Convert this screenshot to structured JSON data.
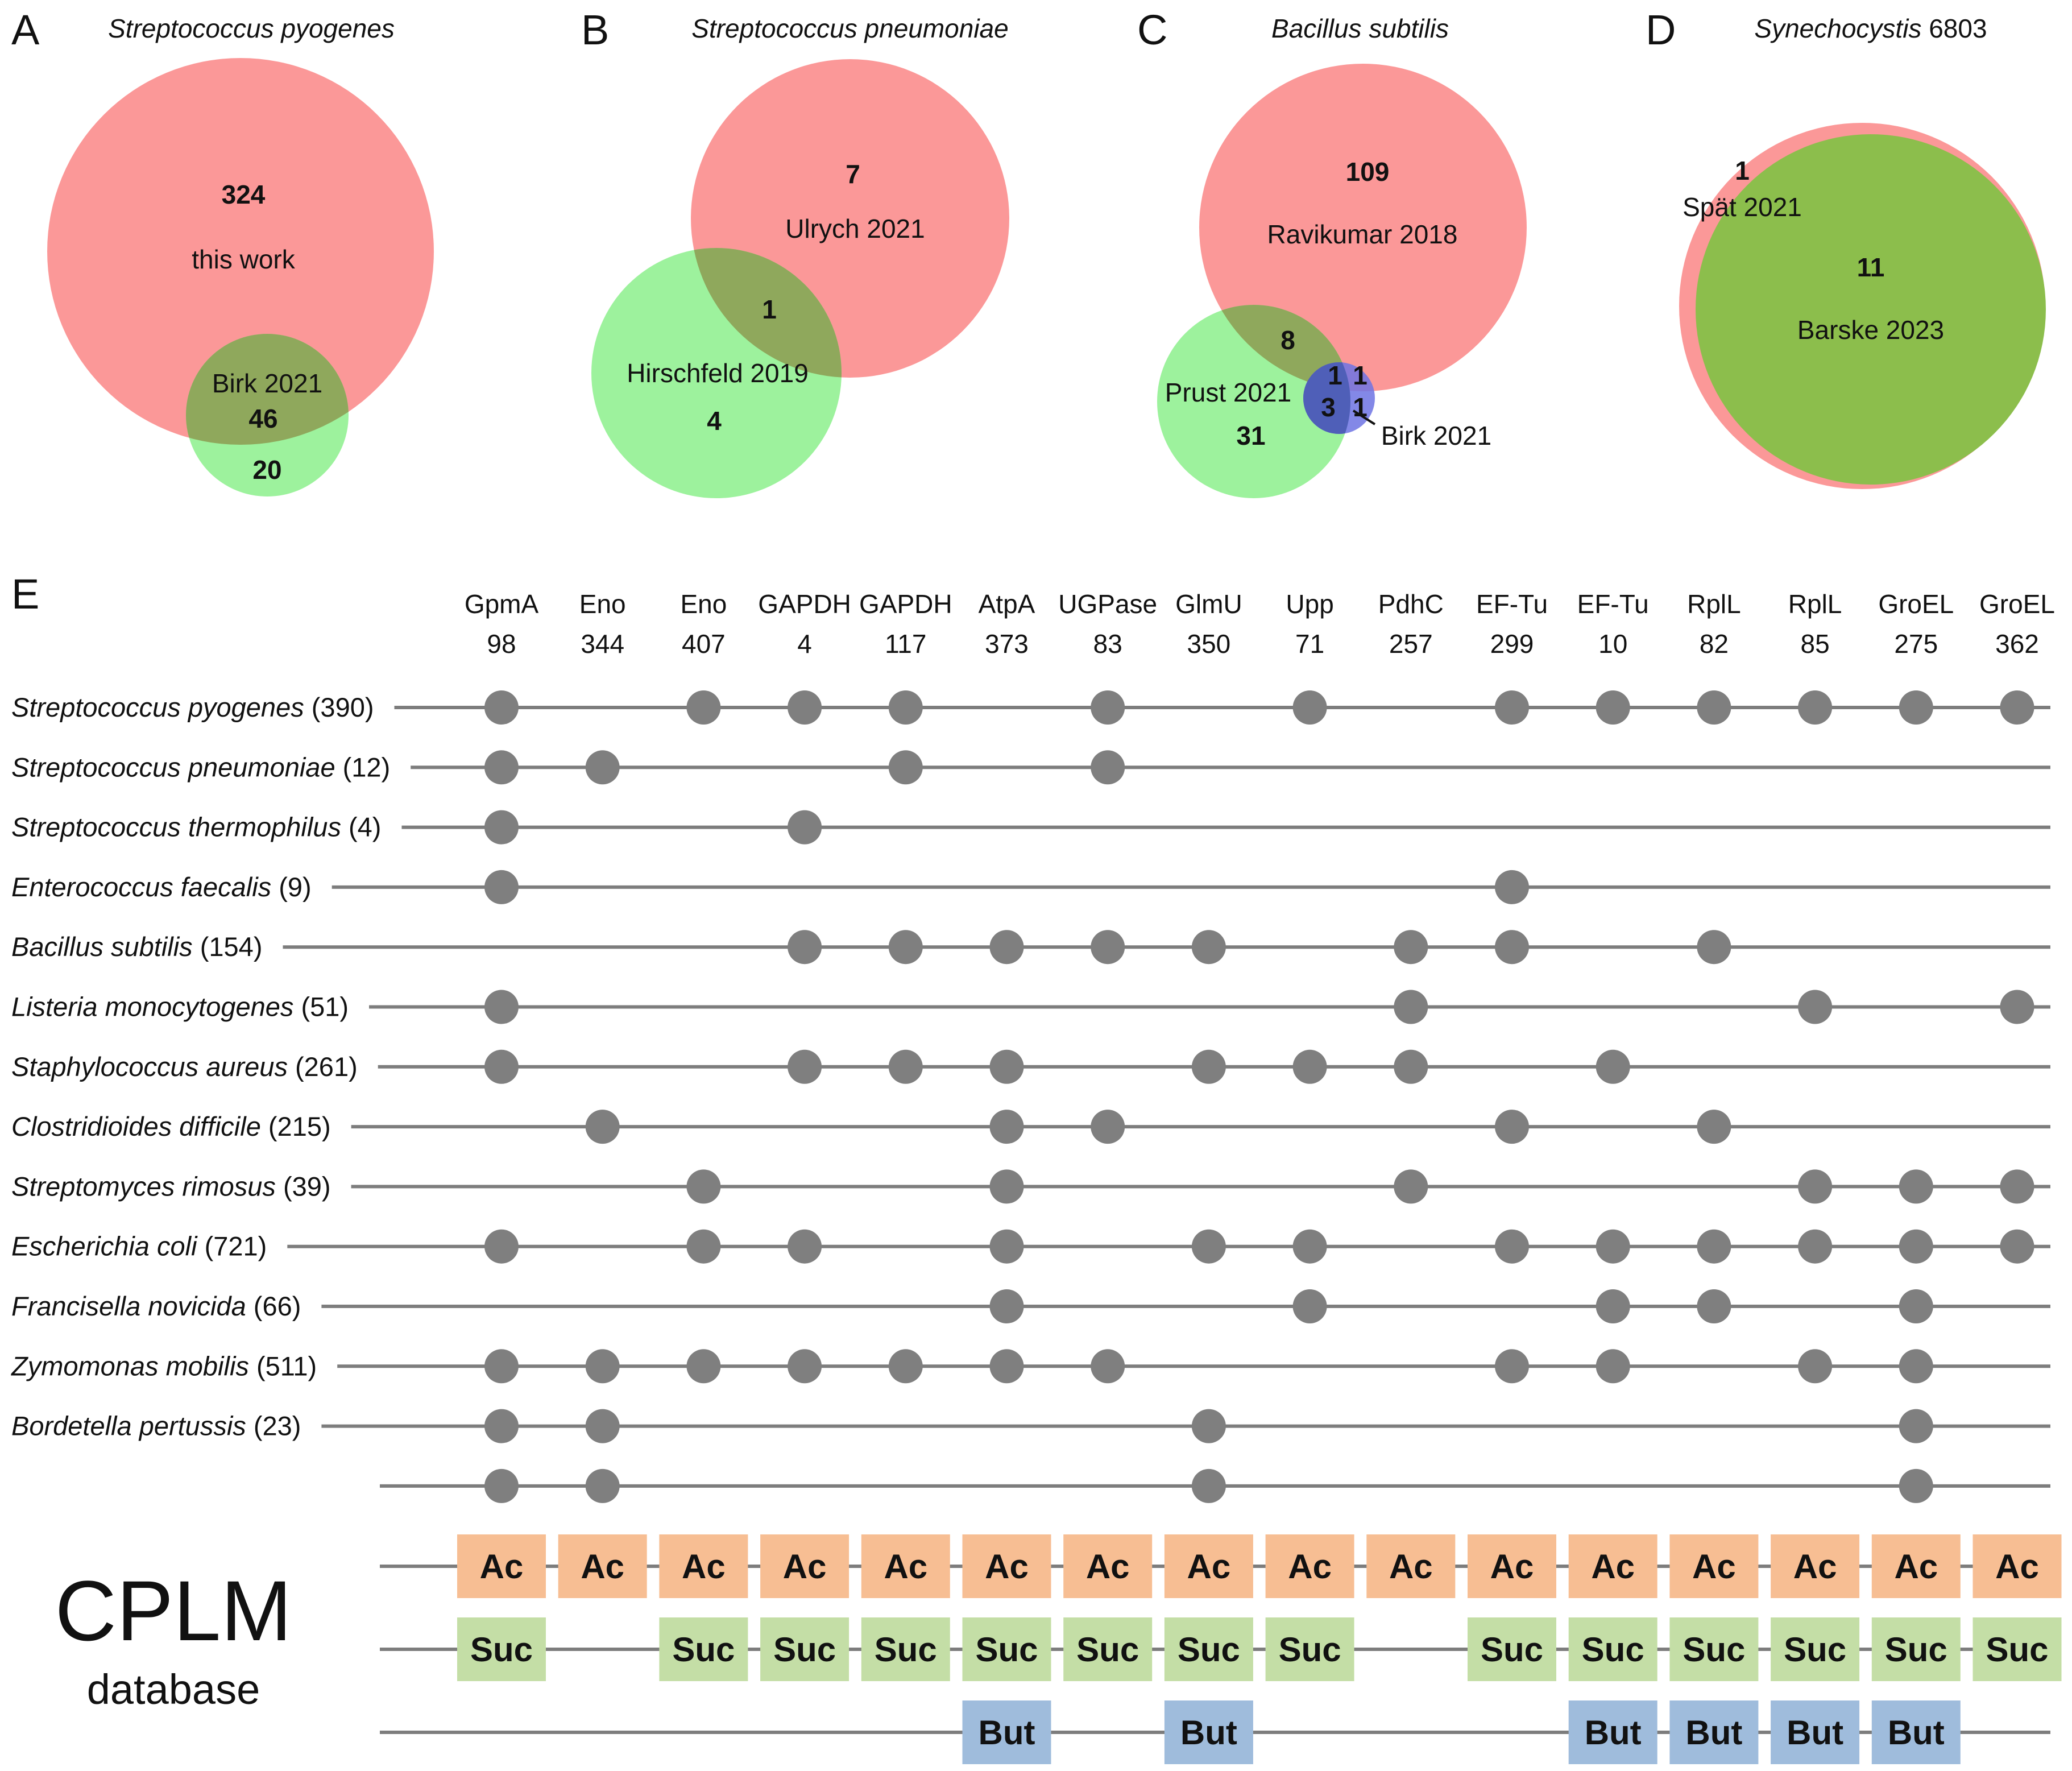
{
  "panels": {
    "A": {
      "label": "A",
      "title": "Streptococcus pyogenes",
      "big": {
        "label": "this work",
        "count": "324"
      },
      "small": {
        "label": "Birk 2021",
        "count": "20"
      },
      "overlap": "46"
    },
    "B": {
      "label": "B",
      "title": "Streptococcus pneumoniae",
      "big": {
        "label": "Ulrych 2021",
        "count": "7"
      },
      "small": {
        "label": "Hirschfeld 2019",
        "count": "4"
      },
      "overlap": "1"
    },
    "C": {
      "label": "C",
      "title": "Bacillus subtilis",
      "big": {
        "label": "Ravikumar 2018",
        "count": "109"
      },
      "green": {
        "label": "Prust 2021",
        "count": "31"
      },
      "blue": {
        "label": "Birk 2021"
      },
      "counts": {
        "red_green": "8",
        "all_three": "1",
        "red_blue": "1",
        "green_blue": "3",
        "blue_only": "1"
      }
    },
    "D": {
      "label": "D",
      "title_italic": "Synechocystis",
      "title_rest": " 6803",
      "small": {
        "label": "Spät 2021",
        "count": "1"
      },
      "big": {
        "label": "Barske 2023",
        "count": "11"
      }
    }
  },
  "matrix": {
    "label": "E",
    "columns": [
      {
        "protein": "GpmA",
        "site": "98"
      },
      {
        "protein": "Eno",
        "site": "344"
      },
      {
        "protein": "Eno",
        "site": "407"
      },
      {
        "protein": "GAPDH",
        "site": "4"
      },
      {
        "protein": "GAPDH",
        "site": "117"
      },
      {
        "protein": "AtpA",
        "site": "373"
      },
      {
        "protein": "UGPase",
        "site": "83"
      },
      {
        "protein": "GlmU",
        "site": "350"
      },
      {
        "protein": "Upp",
        "site": "71"
      },
      {
        "protein": "PdhC",
        "site": "257"
      },
      {
        "protein": "EF-Tu",
        "site": "299"
      },
      {
        "protein": "EF-Tu",
        "site": "10"
      },
      {
        "protein": "RplL",
        "site": "82"
      },
      {
        "protein": "RplL",
        "site": "85"
      },
      {
        "protein": "GroEL",
        "site": "275"
      },
      {
        "protein": "GroEL",
        "site": "362"
      }
    ],
    "rows": [
      {
        "organism": "Streptococcus pyogenes",
        "count": " (390)",
        "dots": [
          0,
          2,
          3,
          4,
          6,
          8,
          10,
          11,
          12,
          13,
          14,
          15
        ]
      },
      {
        "organism": "Streptococcus pneumoniae",
        "count": " (12)",
        "dots": [
          0,
          1,
          4,
          6
        ]
      },
      {
        "organism": "Streptococcus thermophilus",
        "count": " (4)",
        "dots": [
          0,
          3
        ]
      },
      {
        "organism": "Enterococcus faecalis",
        "count": " (9)",
        "dots": [
          0,
          10
        ]
      },
      {
        "organism": "Bacillus subtilis",
        "count": " (154)",
        "dots": [
          3,
          4,
          5,
          6,
          7,
          9,
          10,
          12
        ]
      },
      {
        "organism": "Listeria monocytogenes",
        "count": " (51)",
        "dots": [
          0,
          9,
          13,
          15
        ]
      },
      {
        "organism": "Staphylococcus aureus",
        "count": " (261)",
        "dots": [
          0,
          3,
          4,
          5,
          7,
          8,
          9,
          11
        ]
      },
      {
        "organism": "Clostridioides difficile",
        "count": " (215)",
        "dots": [
          1,
          5,
          6,
          10,
          12
        ]
      },
      {
        "organism": "Streptomyces rimosus",
        "count": " (39)",
        "dots": [
          2,
          5,
          9,
          13,
          14,
          15
        ]
      },
      {
        "organism": "Escherichia coli",
        "count": " (721)",
        "dots": [
          0,
          2,
          3,
          5,
          7,
          8,
          10,
          11,
          12,
          13,
          14,
          15
        ]
      },
      {
        "organism": "Francisella novicida",
        "count": " (66)",
        "dots": [
          5,
          8,
          11,
          12,
          14
        ]
      },
      {
        "organism": "Zymomonas mobilis",
        "count": " (511)",
        "dots": [
          0,
          1,
          2,
          3,
          4,
          5,
          6,
          10,
          11,
          13,
          14
        ]
      },
      {
        "organism": "Bordetella pertussis",
        "count": " (23)",
        "dots": [
          0,
          1,
          7,
          14
        ]
      },
      {
        "organism": "",
        "count": "",
        "dots": [
          0,
          1,
          7,
          14
        ]
      }
    ]
  },
  "cplm": {
    "title": "CPLM",
    "subtitle": "database",
    "rows": [
      {
        "type": "Ac",
        "color": "#f7be93",
        "cols": [
          0,
          1,
          2,
          3,
          4,
          5,
          6,
          7,
          8,
          9,
          10,
          11,
          12,
          13,
          14,
          15
        ]
      },
      {
        "type": "Suc",
        "color": "#c4dea6",
        "cols": [
          0,
          2,
          3,
          4,
          5,
          6,
          7,
          8,
          10,
          11,
          12,
          13,
          14,
          15
        ]
      },
      {
        "type": "But",
        "color": "#9fbcdc",
        "cols": [
          5,
          7,
          11,
          12,
          13,
          14
        ]
      }
    ]
  },
  "colors": {
    "red_circle": "#fa8a8a",
    "green_circle": "#8ff08f",
    "overlap": "#8fa85c",
    "blue_circle": "#6d73e3",
    "d_green": "#8cbe4c",
    "dot": "#7f7f7f"
  }
}
